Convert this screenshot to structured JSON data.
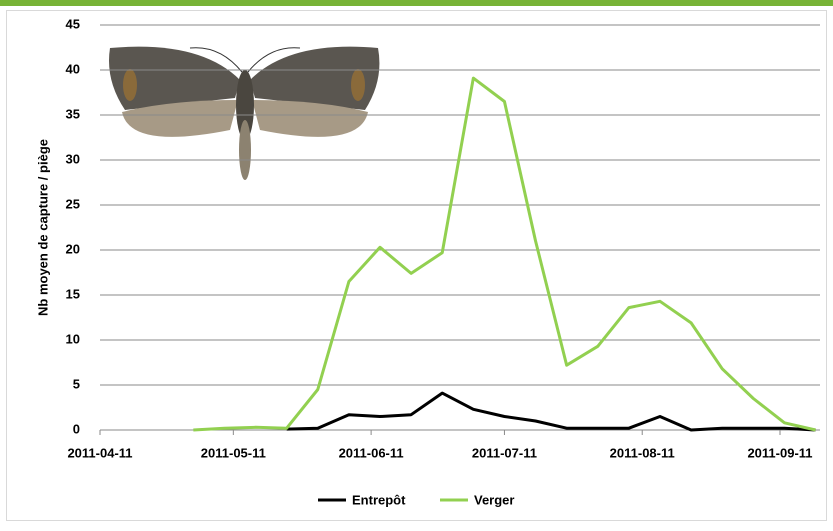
{
  "chart_data": {
    "type": "line",
    "y_label": "Nb moyen de capture / piège",
    "x": [
      "2011-05-02",
      "2011-05-09",
      "2011-05-16",
      "2011-05-23",
      "2011-05-30",
      "2011-06-06",
      "2011-06-13",
      "2011-06-20",
      "2011-06-27",
      "2011-07-04",
      "2011-07-11",
      "2011-07-18",
      "2011-07-25",
      "2011-08-01",
      "2011-08-08",
      "2011-08-15",
      "2011-08-22",
      "2011-08-29",
      "2011-09-05",
      "2011-09-12",
      "2011-09-19"
    ],
    "series": [
      {
        "name": "Entrepôt",
        "color": "#000000",
        "values": [
          null,
          null,
          null,
          0.1,
          0.2,
          1.7,
          1.5,
          1.7,
          4.1,
          2.3,
          1.5,
          1.0,
          0.2,
          0.2,
          0.2,
          1.5,
          0,
          0.2,
          0.2,
          0.2,
          0
        ]
      },
      {
        "name": "Verger",
        "color": "#92d050",
        "values": [
          0,
          0.2,
          0.3,
          0.2,
          4.5,
          16.5,
          20.3,
          17.4,
          19.7,
          39.1,
          36.5,
          21,
          7.2,
          9.3,
          13.6,
          14.3,
          11.9,
          6.8,
          3.5,
          0.8,
          0
        ]
      }
    ],
    "xlim": [
      "2011-04-11",
      "2011-09-20"
    ],
    "xticks": [
      "2011-04-11",
      "2011-05-11",
      "2011-06-11",
      "2011-07-11",
      "2011-08-11",
      "2011-09-11"
    ],
    "ylim": [
      0,
      45
    ],
    "yticks": [
      0,
      5,
      10,
      15,
      20,
      25,
      30,
      35,
      40,
      45
    ],
    "grid": true,
    "legend": "bottom"
  }
}
